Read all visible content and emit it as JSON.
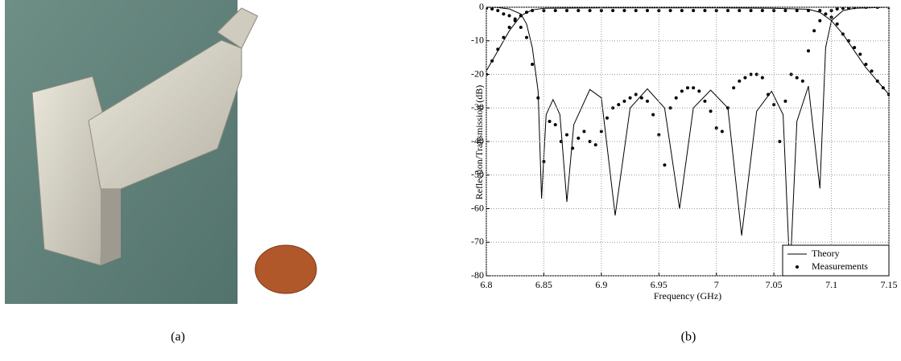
{
  "captions": [
    "(a)",
    "(b)"
  ],
  "chart_data": {
    "type": "line",
    "xlabel": "Frequency (GHz)",
    "ylabel": "Reflection/Transmission (dB)",
    "xlim": [
      6.8,
      7.15
    ],
    "xticks": [
      6.8,
      6.85,
      6.9,
      6.95,
      7,
      7.05,
      7.1,
      7.15
    ],
    "ylim": [
      -80,
      0
    ],
    "yticks": [
      -80,
      -70,
      -60,
      -50,
      -40,
      -30,
      -20,
      -10,
      0
    ],
    "grid": true,
    "legend": "lower right",
    "series": [
      {
        "name": "Theory",
        "mode": "line",
        "color": "#000000",
        "x": [
          6.8,
          6.81,
          6.82,
          6.83,
          6.84,
          6.85,
          6.9,
          7.0,
          7.05,
          7.08,
          7.09,
          7.1,
          7.11,
          7.12,
          7.13,
          7.14,
          7.15,
          null,
          6.8,
          6.81,
          6.82,
          6.83,
          6.835,
          6.84,
          6.845,
          6.848,
          6.852,
          6.858,
          6.864,
          6.87,
          6.876,
          6.89,
          6.9,
          6.912,
          6.925,
          6.94,
          6.955,
          6.968,
          6.98,
          6.995,
          7.01,
          7.022,
          7.035,
          7.048,
          7.058,
          7.064,
          7.07,
          7.08,
          7.09,
          7.095,
          7.1,
          7.11,
          7.12,
          7.15
        ],
        "values": [
          -19,
          -13,
          -7,
          -2.5,
          -0.8,
          -0.3,
          -0.2,
          -0.2,
          -0.3,
          -0.6,
          -1.5,
          -4,
          -8,
          -13,
          -18,
          -22,
          -26,
          null,
          0,
          -0.1,
          -0.5,
          -2,
          -5,
          -12,
          -25,
          -57,
          -32,
          -27.5,
          -32,
          -58,
          -35,
          -24.5,
          -27,
          -62,
          -30,
          -24.3,
          -30,
          -60,
          -30,
          -24.7,
          -30,
          -68,
          -31,
          -25,
          -32,
          -80,
          -34,
          -23.5,
          -54,
          -12,
          -4,
          -1,
          -0.3,
          0
        ]
      },
      {
        "name": "Measurements",
        "mode": "markers",
        "color": "#000000",
        "x": [
          6.8,
          6.805,
          6.81,
          6.815,
          6.82,
          6.825,
          6.83,
          6.835,
          6.84,
          6.85,
          6.86,
          6.87,
          6.88,
          6.89,
          6.9,
          6.91,
          6.92,
          6.93,
          6.94,
          6.95,
          6.96,
          6.97,
          6.98,
          6.99,
          7.0,
          7.01,
          7.02,
          7.03,
          7.04,
          7.05,
          7.06,
          7.07,
          7.08,
          7.09,
          7.1,
          7.105,
          7.11,
          7.115,
          7.12,
          7.125,
          7.13,
          7.135,
          7.14,
          7.145,
          7.15,
          6.8,
          6.805,
          6.81,
          6.815,
          6.82,
          6.825,
          6.83,
          6.835,
          6.84,
          6.845,
          6.85,
          6.855,
          6.86,
          6.865,
          6.87,
          6.875,
          6.88,
          6.885,
          6.89,
          6.895,
          6.9,
          6.905,
          6.91,
          6.915,
          6.92,
          6.925,
          6.93,
          6.935,
          6.94,
          6.945,
          6.95,
          6.955,
          6.96,
          6.965,
          6.97,
          6.975,
          6.98,
          6.985,
          6.99,
          6.995,
          7.0,
          7.005,
          7.01,
          7.015,
          7.02,
          7.025,
          7.03,
          7.035,
          7.04,
          7.045,
          7.05,
          7.055,
          7.06,
          7.065,
          7.07,
          7.075,
          7.08,
          7.085,
          7.09,
          7.095,
          7.1,
          7.105,
          7.11,
          7.115,
          7.12,
          7.13,
          7.14,
          7.15
        ],
        "values": [
          -20,
          -16,
          -12.5,
          -9,
          -6,
          -4,
          -2.5,
          -1.5,
          -1,
          -1,
          -1,
          -1,
          -1,
          -1,
          -1,
          -1,
          -1,
          -1,
          -1,
          -1,
          -1,
          -1,
          -1,
          -1,
          -1,
          -1,
          -1,
          -1,
          -1,
          -1,
          -1,
          -1,
          -1,
          -1,
          -3,
          -5,
          -8,
          -10,
          -12,
          -14,
          -17,
          -19,
          -22,
          -24,
          -26,
          -0.3,
          -0.5,
          -1,
          -2,
          -2.5,
          -3.5,
          -6,
          -9,
          -17,
          -27,
          -46,
          -34,
          -35,
          -40,
          -38,
          -42,
          -39,
          -37,
          -40,
          -41,
          -37,
          -33,
          -30,
          -29,
          -28,
          -27,
          -26,
          -27,
          -28,
          -32,
          -38,
          -47,
          -30,
          -27,
          -25,
          -24,
          -24,
          -25,
          -28,
          -31,
          -36,
          -37,
          -30,
          -24,
          -22,
          -21,
          -20,
          -20,
          -21,
          -26,
          -29,
          -40,
          -28,
          -20,
          -21,
          -22,
          -13,
          -7,
          -4,
          -2,
          -1,
          -0.5,
          -0.3,
          -0.2,
          -0.1,
          0,
          0,
          0
        ]
      }
    ]
  }
}
